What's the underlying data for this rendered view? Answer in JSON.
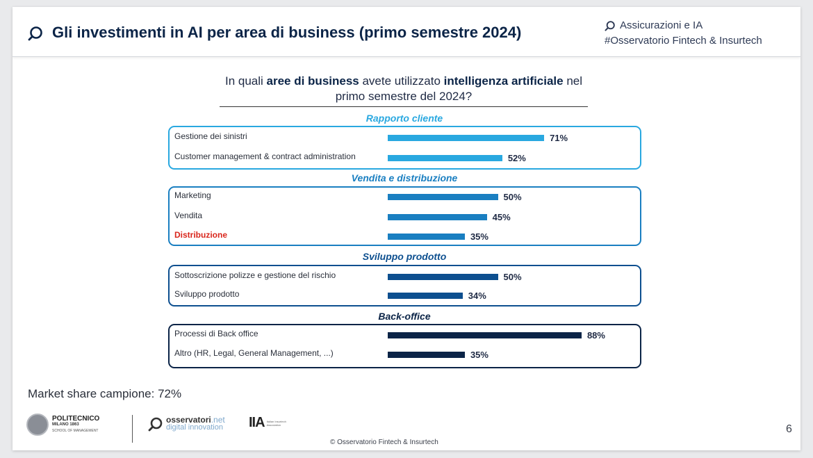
{
  "header": {
    "title": "Gli investimenti in AI per area di business (primo semestre 2024)",
    "tag_line1": "Assicurazioni e IA",
    "tag_line2": "#Osservatorio Fintech & Insurtech"
  },
  "question": {
    "part1": "In quali ",
    "bold1": "aree di business",
    "part2": " avete utilizzato ",
    "bold2": "intelligenza artificiale",
    "part3": " nel primo semestre del 2024?"
  },
  "colors": {
    "rapporto": "#29a8e0",
    "vendita": "#1a7fc1",
    "sviluppo": "#0d4f8f",
    "backoffice": "#0b2447",
    "highlight": "#d9261c"
  },
  "chart_data": {
    "type": "bar",
    "orientation": "horizontal",
    "value_suffix": "%",
    "xlim": [
      0,
      100
    ],
    "grid": false,
    "groups": [
      {
        "name": "Rapporto cliente",
        "color": "#29a8e0",
        "items": [
          {
            "label": "Gestione dei sinistri",
            "value": 71
          },
          {
            "label": "Customer management & contract administration",
            "value": 52
          }
        ]
      },
      {
        "name": "Vendita e distribuzione",
        "color": "#1a7fc1",
        "items": [
          {
            "label": "Marketing",
            "value": 50
          },
          {
            "label": "Vendita",
            "value": 45
          },
          {
            "label": "Distribuzione",
            "value": 35,
            "highlight": true
          }
        ]
      },
      {
        "name": "Sviluppo prodotto",
        "color": "#0d4f8f",
        "items": [
          {
            "label": "Sottoscrizione polizze e gestione del rischio",
            "value": 50
          },
          {
            "label": "Sviluppo prodotto",
            "value": 34
          }
        ]
      },
      {
        "name": "Back-office",
        "color": "#0b2447",
        "items": [
          {
            "label": "Processi di Back office",
            "value": 88
          },
          {
            "label": "Altro (HR, Legal, General Management, ...)",
            "value": 35
          }
        ]
      }
    ]
  },
  "footer": {
    "market_share": "Market share campione: 72%",
    "polimi_name": "POLITECNICO",
    "polimi_sub": "MILANO 1863",
    "polimi_sub2": "SCHOOL OF MANAGEMENT",
    "oss_name": "osservatori",
    "oss_name_suffix": ".net",
    "oss_sub": "digital innovation",
    "iia_mark": "IIA",
    "iia_text": "Italian Insurtech Association",
    "copyright": "© Osservatorio Fintech & Insurtech",
    "page_number": "6"
  }
}
